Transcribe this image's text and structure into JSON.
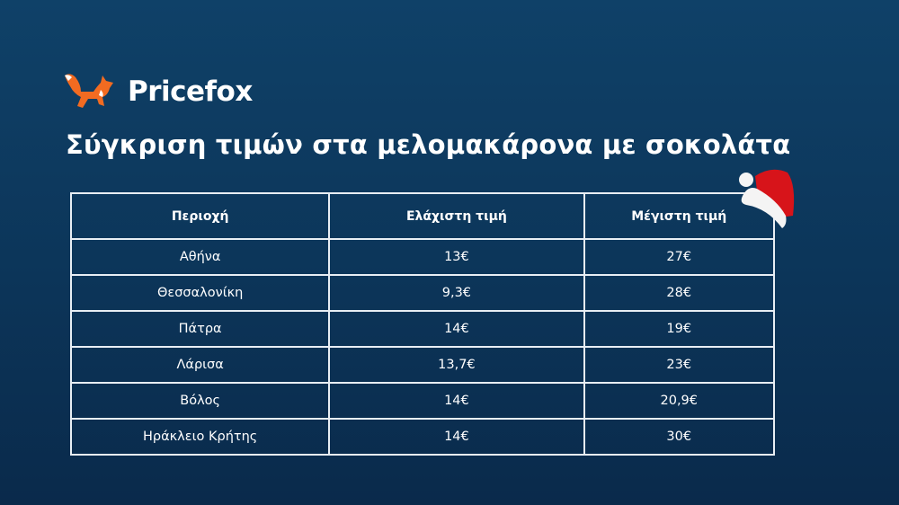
{
  "brand": {
    "name": "Pricefox",
    "logo_icon": "fox-icon",
    "accent": "#f26b21"
  },
  "title": "Σύγκριση τιμών στα μελομακάρονα με σοκολάτα",
  "decoration": "santa-hat-icon",
  "table": {
    "headers": [
      "Περιοχή",
      "Ελάχιστη τιμή",
      "Μέγιστη τιμή"
    ],
    "rows": [
      [
        "Αθήνα",
        "13€",
        "27€"
      ],
      [
        "Θεσσαλονίκη",
        "9,3€",
        "28€"
      ],
      [
        "Πάτρα",
        "14€",
        "19€"
      ],
      [
        "Λάρισα",
        "13,7€",
        "23€"
      ],
      [
        "Βόλος",
        "14€",
        "20,9€"
      ],
      [
        "Ηράκλειο Κρήτης",
        "14€",
        "30€"
      ]
    ]
  }
}
